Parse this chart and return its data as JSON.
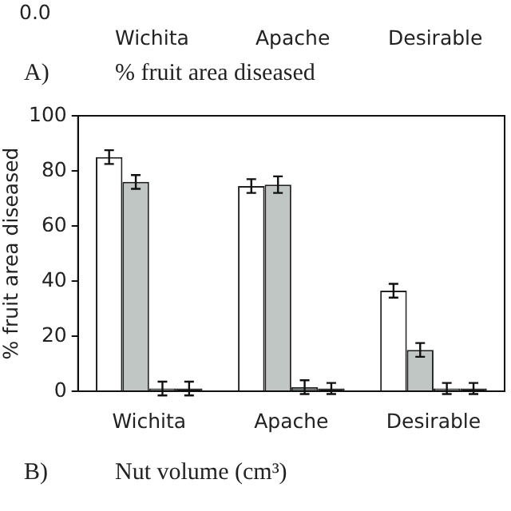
{
  "chart_data": [
    {
      "type": "other",
      "annotations": [
        "0.0",
        "Wichita",
        "Apache",
        "Desirable",
        "A)",
        "% fruit area diseased"
      ]
    },
    {
      "type": "bar",
      "ylabel": "% fruit area diseased",
      "categories": [
        "Wichita",
        "Apache",
        "Desirable"
      ],
      "series": [
        {
          "color": "#ffffff",
          "values": [
            85,
            74.5,
            36.5
          ],
          "errors": [
            2.5,
            2.5,
            2.5
          ]
        },
        {
          "color": "#bfc6c4",
          "values": [
            76,
            75,
            15
          ],
          "errors": [
            2.5,
            3,
            2.5
          ]
        },
        {
          "color": "#6f7774",
          "values": [
            1,
            1.5,
            1
          ],
          "errors": [
            2.5,
            2.5,
            2
          ]
        },
        {
          "color": "#111111",
          "values": [
            1,
            1,
            1
          ],
          "errors": [
            2.5,
            2,
            2
          ]
        }
      ],
      "ylim": [
        0,
        100
      ],
      "yticks": [
        0,
        20,
        40,
        60,
        80,
        100
      ],
      "grid": false,
      "legend": false,
      "annotations": [
        "B)",
        "Nut volume (cm³)"
      ]
    }
  ]
}
